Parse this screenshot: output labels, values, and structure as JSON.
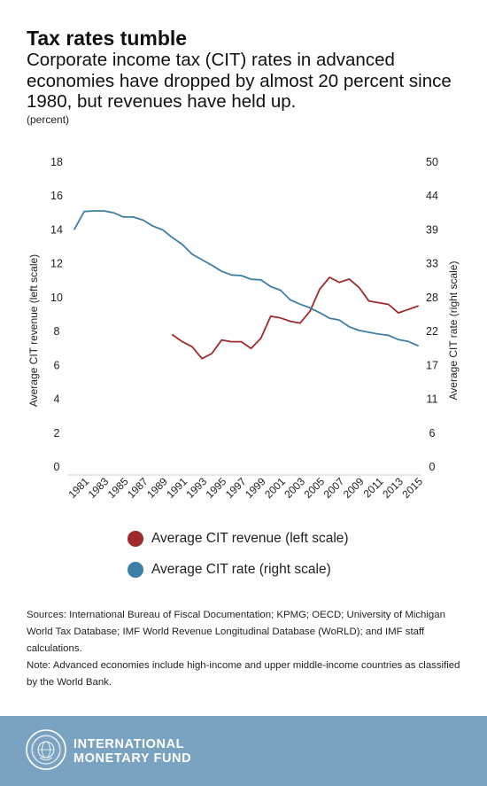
{
  "header": {
    "title": "Tax rates tumble",
    "subtitle": "Corporate income tax (CIT) rates in advanced economies have dropped by almost 20 percent since 1980, but revenues have held up.",
    "unit_note": "(percent)"
  },
  "chart_data": {
    "type": "line",
    "left_axis": {
      "label": "Average CIT revenue (left scale)",
      "min": 0,
      "max": 18,
      "ticks": [
        0,
        2,
        4,
        6,
        8,
        10,
        12,
        14,
        16,
        18
      ]
    },
    "right_axis": {
      "label": "Average CIT rate (right scale)",
      "min": 0,
      "max": 50,
      "ticks": [
        0,
        6,
        11,
        17,
        22,
        28,
        33,
        39,
        44,
        50
      ]
    },
    "x_tick_labels": [
      "1981",
      "1983",
      "1985",
      "1987",
      "1989",
      "1991",
      "1993",
      "1995",
      "1997",
      "1999",
      "2001",
      "2003",
      "2005",
      "2007",
      "2009",
      "2011",
      "2013",
      "2015"
    ],
    "grid": false,
    "series": [
      {
        "name": "Average CIT revenue (left scale)",
        "axis": "left",
        "color": "#9e2a2b",
        "x": [
          1990,
          1991,
          1992,
          1993,
          1994,
          1995,
          1996,
          1997,
          1998,
          1999,
          2000,
          2001,
          2002,
          2003,
          2004,
          2005,
          2006,
          2007,
          2008,
          2009,
          2010,
          2011,
          2012,
          2013,
          2014,
          2015
        ],
        "values": [
          7.8,
          7.4,
          7.1,
          6.4,
          6.7,
          7.5,
          7.4,
          7.4,
          7.0,
          7.6,
          8.9,
          8.8,
          8.6,
          8.5,
          9.2,
          10.5,
          11.2,
          10.9,
          11.1,
          10.6,
          9.8,
          9.7,
          9.6,
          9.1,
          9.3,
          9.5
        ]
      },
      {
        "name": "Average CIT rate (right scale)",
        "axis": "right",
        "color": "#3d7ea6",
        "x": [
          1980,
          1981,
          1982,
          1983,
          1984,
          1985,
          1986,
          1987,
          1988,
          1989,
          1990,
          1991,
          1992,
          1993,
          1994,
          1995,
          1996,
          1997,
          1998,
          1999,
          2000,
          2001,
          2002,
          2003,
          2004,
          2005,
          2006,
          2007,
          2008,
          2009,
          2010,
          2011,
          2012,
          2013,
          2014,
          2015
        ],
        "values": [
          39.0,
          41.9,
          42.0,
          42.0,
          41.7,
          41.0,
          41.0,
          40.5,
          39.5,
          38.9,
          37.6,
          36.5,
          34.9,
          34.0,
          33.1,
          32.1,
          31.5,
          31.4,
          30.8,
          30.7,
          29.6,
          29.0,
          27.4,
          26.7,
          26.1,
          25.3,
          24.4,
          24.1,
          23.0,
          22.4,
          22.1,
          21.8,
          21.6,
          20.9,
          20.6,
          19.9
        ]
      }
    ]
  },
  "legend": {
    "items": [
      {
        "label": "Average CIT revenue (left scale)",
        "color": "#9e2a2b"
      },
      {
        "label": "Average CIT rate (right scale)",
        "color": "#3d7ea6"
      }
    ]
  },
  "notes": {
    "sources": "Sources: International Bureau of Fiscal Documentation; KPMG; OECD; University of Michigan World Tax Database; IMF World Revenue Longitudinal Database (WoRLD); and IMF staff calculations.",
    "note": "Note: Advanced economies include high-income and upper middle-income countries as classified by the World Bank."
  },
  "footer": {
    "org_line1": "INTERNATIONAL",
    "org_line2": "MONETARY FUND",
    "background": "#7aa3c1"
  }
}
